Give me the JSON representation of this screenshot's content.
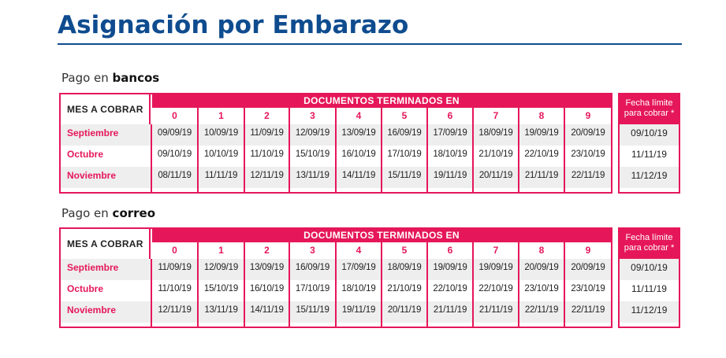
{
  "title": "Asignación por Embarazo",
  "header": {
    "mes_label": "MES A COBRAR",
    "docs_label": "DOCUMENTOS TERMINADOS EN",
    "fecha_label_line1": "Fecha límite",
    "fecha_label_line2": "para cobrar *",
    "digits": [
      "0",
      "1",
      "2",
      "3",
      "4",
      "5",
      "6",
      "7",
      "8",
      "9"
    ]
  },
  "sections": [
    {
      "prefix": "Pago en ",
      "bold": "bancos",
      "rows": [
        {
          "month": "Septiembre",
          "dates": [
            "09/09/19",
            "10/09/19",
            "11/09/19",
            "12/09/19",
            "13/09/19",
            "16/09/19",
            "17/09/19",
            "18/09/19",
            "19/09/19",
            "20/09/19"
          ],
          "deadline": "09/10/19"
        },
        {
          "month": "Octubre",
          "dates": [
            "09/10/19",
            "10/10/19",
            "11/10/19",
            "15/10/19",
            "16/10/19",
            "17/10/19",
            "18/10/19",
            "21/10/19",
            "22/10/19",
            "23/10/19"
          ],
          "deadline": "11/11/19"
        },
        {
          "month": "Noviembre",
          "dates": [
            "08/11/19",
            "11/11/19",
            "12/11/19",
            "13/11/19",
            "14/11/19",
            "15/11/19",
            "19/11/19",
            "20/11/19",
            "21/11/19",
            "22/11/19"
          ],
          "deadline": "11/12/19"
        }
      ]
    },
    {
      "prefix": "Pago en ",
      "bold": "correo",
      "rows": [
        {
          "month": "Septiembre",
          "dates": [
            "11/09/19",
            "12/09/19",
            "13/09/19",
            "16/09/19",
            "17/09/19",
            "18/09/19",
            "19/09/19",
            "19/09/19",
            "20/09/19",
            "20/09/19"
          ],
          "deadline": "09/10/19"
        },
        {
          "month": "Octubre",
          "dates": [
            "11/10/19",
            "15/10/19",
            "16/10/19",
            "17/10/19",
            "18/10/19",
            "21/10/19",
            "22/10/19",
            "22/10/19",
            "23/10/19",
            "23/10/19"
          ],
          "deadline": "11/11/19"
        },
        {
          "month": "Noviembre",
          "dates": [
            "12/11/19",
            "13/11/19",
            "14/11/19",
            "15/11/19",
            "19/11/19",
            "20/11/19",
            "21/11/19",
            "21/11/19",
            "22/11/19",
            "22/11/19"
          ],
          "deadline": "11/12/19"
        }
      ]
    }
  ]
}
